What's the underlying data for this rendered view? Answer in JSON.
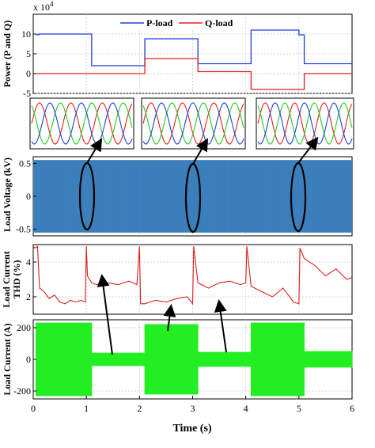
{
  "x_axis": {
    "label": "Time (s)",
    "range": [
      0,
      6
    ],
    "ticks": [
      0,
      1,
      2,
      3,
      4,
      5,
      6
    ],
    "tick_labels": [
      "0",
      "1",
      "2",
      "3",
      "4",
      "5",
      "6"
    ]
  },
  "colors": {
    "p_load": "#1f3fd6",
    "q_load": "#e02020",
    "phase_a": "#e02020",
    "phase_b": "#22cc22",
    "phase_c": "#1f3fd6",
    "voltage_fill": "#2f80c8",
    "current_fill": "#22ee22",
    "thd": "#d81f1f",
    "grid": "#c8c8c8"
  },
  "chart_data": [
    {
      "id": "power",
      "type": "line",
      "ylabel": "Power (P and Q)",
      "exponent_label": "x 10",
      "exponent_power": "4",
      "ylim": [
        -5,
        15
      ],
      "yticks": [
        -5,
        0,
        5,
        10
      ],
      "grid": true,
      "legend": "top-right",
      "series": [
        {
          "name": "P-load",
          "x": [
            0.05,
            0.1,
            1.0,
            1.1,
            2.0,
            2.1,
            3.0,
            3.1,
            4.0,
            4.1,
            5.0,
            5.1,
            6.0
          ],
          "y": [
            9.8,
            10.0,
            10.0,
            2.0,
            2.0,
            8.8,
            8.8,
            2.5,
            2.5,
            11.0,
            9.8,
            2.5,
            2.5
          ]
        },
        {
          "name": "Q-load",
          "x": [
            0.05,
            1.0,
            1.1,
            2.0,
            2.1,
            3.0,
            3.1,
            4.0,
            4.1,
            5.0,
            5.1,
            6.0
          ],
          "y": [
            0.0,
            0.0,
            0.0,
            0.0,
            3.8,
            3.8,
            0.5,
            0.5,
            -4.0,
            -4.0,
            0.0,
            0.0
          ]
        }
      ]
    },
    {
      "id": "voltage",
      "type": "area",
      "ylabel": "Load Voltage (kV)",
      "ylim": [
        -0.6,
        0.6
      ],
      "yticks": [
        -0.5,
        0,
        0.5
      ],
      "tick_labels": [
        "-0.5",
        "0",
        "0.5"
      ],
      "grid": true,
      "envelope": {
        "x": [
          0,
          6
        ],
        "y_max": 0.55,
        "y_min": -0.55
      }
    },
    {
      "id": "thd",
      "type": "line",
      "ylabel_lines": [
        "Load Current",
        "THD (%)"
      ],
      "ylim": [
        1,
        5
      ],
      "yticks": [
        2,
        4
      ],
      "grid": true,
      "series": [
        {
          "name": "THD",
          "x": [
            0.0,
            0.03,
            0.08,
            0.12,
            0.2,
            0.3,
            0.4,
            0.5,
            0.6,
            0.7,
            0.8,
            0.9,
            0.98,
            1.0,
            1.02,
            1.1,
            1.2,
            1.4,
            1.6,
            1.8,
            1.95,
            2.0,
            2.02,
            2.1,
            2.3,
            2.5,
            2.7,
            2.9,
            3.0,
            3.02,
            3.1,
            3.3,
            3.5,
            3.7,
            3.9,
            4.0,
            4.02,
            4.1,
            4.3,
            4.5,
            4.7,
            4.9,
            5.0,
            5.02,
            5.1,
            5.3,
            5.5,
            5.7,
            5.9,
            6.0
          ],
          "y": [
            4.9,
            4.8,
            4.9,
            2.5,
            2.3,
            1.9,
            2.1,
            1.7,
            1.6,
            1.8,
            1.7,
            1.8,
            1.7,
            4.9,
            3.2,
            2.8,
            2.7,
            2.8,
            2.7,
            2.9,
            2.7,
            4.9,
            1.6,
            1.6,
            1.8,
            1.7,
            1.9,
            2.0,
            1.6,
            4.9,
            2.8,
            2.5,
            2.8,
            2.9,
            2.7,
            2.8,
            4.9,
            2.6,
            2.3,
            2.0,
            2.5,
            1.7,
            1.6,
            4.8,
            4.2,
            3.8,
            3.2,
            3.6,
            3.0,
            3.1
          ]
        }
      ]
    },
    {
      "id": "current",
      "type": "area",
      "ylabel": "Load Current (A)",
      "ylim": [
        -250,
        250
      ],
      "yticks": [
        -200,
        0,
        200
      ],
      "tick_labels": [
        "-200",
        "0",
        "200"
      ],
      "grid": true,
      "envelope": {
        "x": [
          0.05,
          0.1,
          1.0,
          1.1,
          2.0,
          2.1,
          3.0,
          3.1,
          4.0,
          4.1,
          5.0,
          5.1,
          6.0
        ],
        "y_max": [
          230,
          230,
          230,
          40,
          40,
          220,
          220,
          45,
          45,
          230,
          230,
          50,
          50
        ],
        "y_min": [
          -230,
          -230,
          -230,
          -40,
          -40,
          -220,
          -220,
          -45,
          -45,
          -230,
          -230,
          -50,
          -50
        ]
      }
    }
  ]
}
